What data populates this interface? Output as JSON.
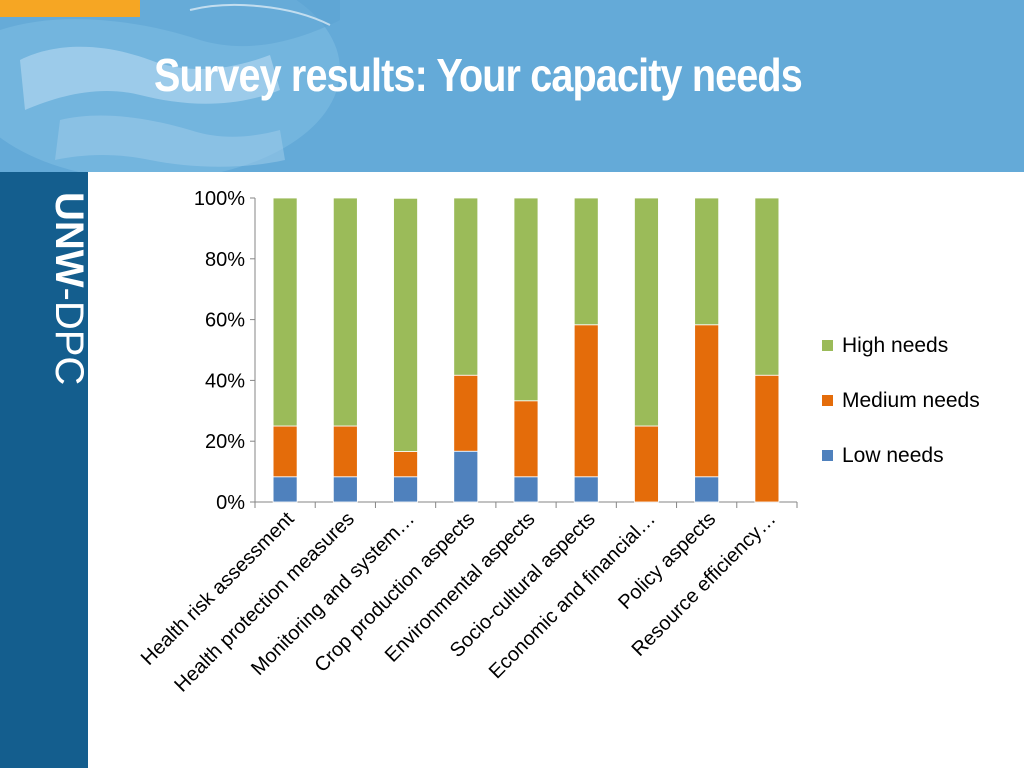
{
  "slide": {
    "title": "Survey results: Your capacity needs",
    "logo_text": "UNW-DPC"
  },
  "colors": {
    "header_bg": "#64aad8",
    "sidebar_bg": "#145e8e",
    "accent": "#f6a623",
    "high_needs": "#9bbb59",
    "medium_needs": "#e46c0a",
    "low_needs": "#4f81bd"
  },
  "chart_data": {
    "type": "bar",
    "stacked": true,
    "percent": true,
    "categories": [
      "Health risk assessment",
      "Health protection measures",
      "Monitoring and system…",
      "Crop production aspects",
      "Environmental aspects",
      "Socio-cultural aspects",
      "Economic and financial…",
      "Policy aspects",
      "Resource efficiency…"
    ],
    "series": [
      {
        "name": "Low needs",
        "color": "#4f81bd",
        "values": [
          8.3,
          8.3,
          8.3,
          16.7,
          8.3,
          8.3,
          0,
          8.3,
          0
        ]
      },
      {
        "name": "Medium needs",
        "color": "#e46c0a",
        "values": [
          16.7,
          16.7,
          8.3,
          25.0,
          25.0,
          50.0,
          25.0,
          50.0,
          41.7
        ]
      },
      {
        "name": "High needs",
        "color": "#9bbb59",
        "values": [
          75.0,
          75.0,
          83.3,
          58.3,
          66.7,
          41.7,
          75.0,
          41.7,
          58.3
        ]
      }
    ],
    "y_ticks": [
      "0%",
      "20%",
      "40%",
      "60%",
      "80%",
      "100%"
    ],
    "ylim": [
      0,
      100
    ],
    "legend_order": [
      "High needs",
      "Medium needs",
      "Low needs"
    ],
    "legend_position": "right",
    "grid": false
  }
}
